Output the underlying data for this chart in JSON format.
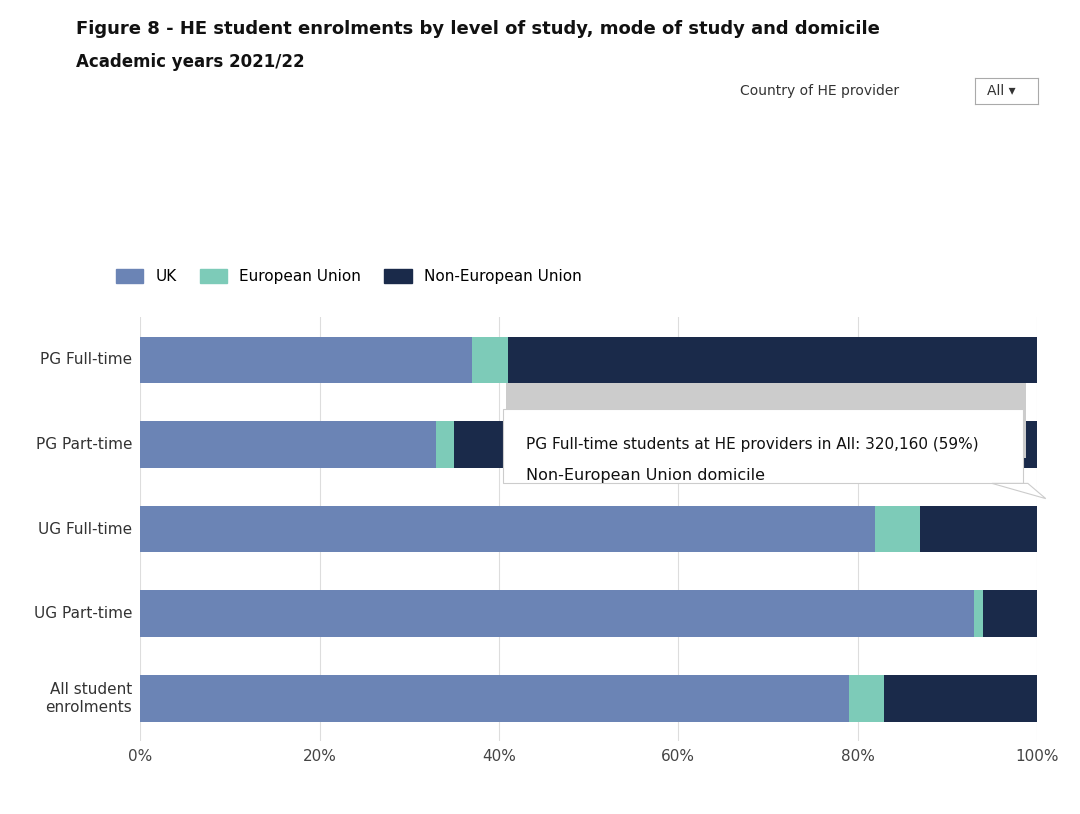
{
  "title_line1": "Figure 8 - HE student enrolments by level of study, mode of study and domicile",
  "title_line2": "Academic years 2021/22",
  "provider_label": "Country of HE provider",
  "provider_value": "All ▾",
  "categories": [
    "PG Full-time",
    "PG Part-time",
    "UG Full-time",
    "UG Part-time",
    "All student\nenrolments"
  ],
  "uk": [
    37,
    33,
    82,
    93,
    79
  ],
  "eu": [
    4,
    2,
    5,
    1,
    4
  ],
  "noneu": [
    59,
    65,
    13,
    6,
    17
  ],
  "colors": {
    "uk": "#6b84b5",
    "eu": "#7dcbb8",
    "noneu": "#1a2a4a"
  },
  "tooltip_title": "Non-European Union domicile",
  "tooltip_body": "PG Full-time students at HE providers in All: 320,160 (59%)",
  "background_color": "#ffffff",
  "grid_color": "#dddddd",
  "figsize": [
    10.8,
    8.14
  ],
  "dpi": 100
}
